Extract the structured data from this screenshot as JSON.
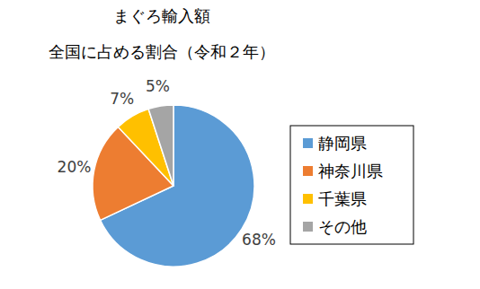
{
  "chart_data": {
    "type": "pie",
    "title": "まぐろ輸入額",
    "subtitle": "全国に占める割合（令和２年）",
    "categories": [
      "静岡県",
      "神奈川県",
      "千葉県",
      "その他"
    ],
    "values": [
      68,
      20,
      7,
      5
    ],
    "value_labels": [
      "68%",
      "20%",
      "7%",
      "5%"
    ],
    "colors": [
      "#5b9bd5",
      "#ed7d31",
      "#ffc000",
      "#a5a5a5"
    ],
    "data_labels": true,
    "legend": "right"
  }
}
